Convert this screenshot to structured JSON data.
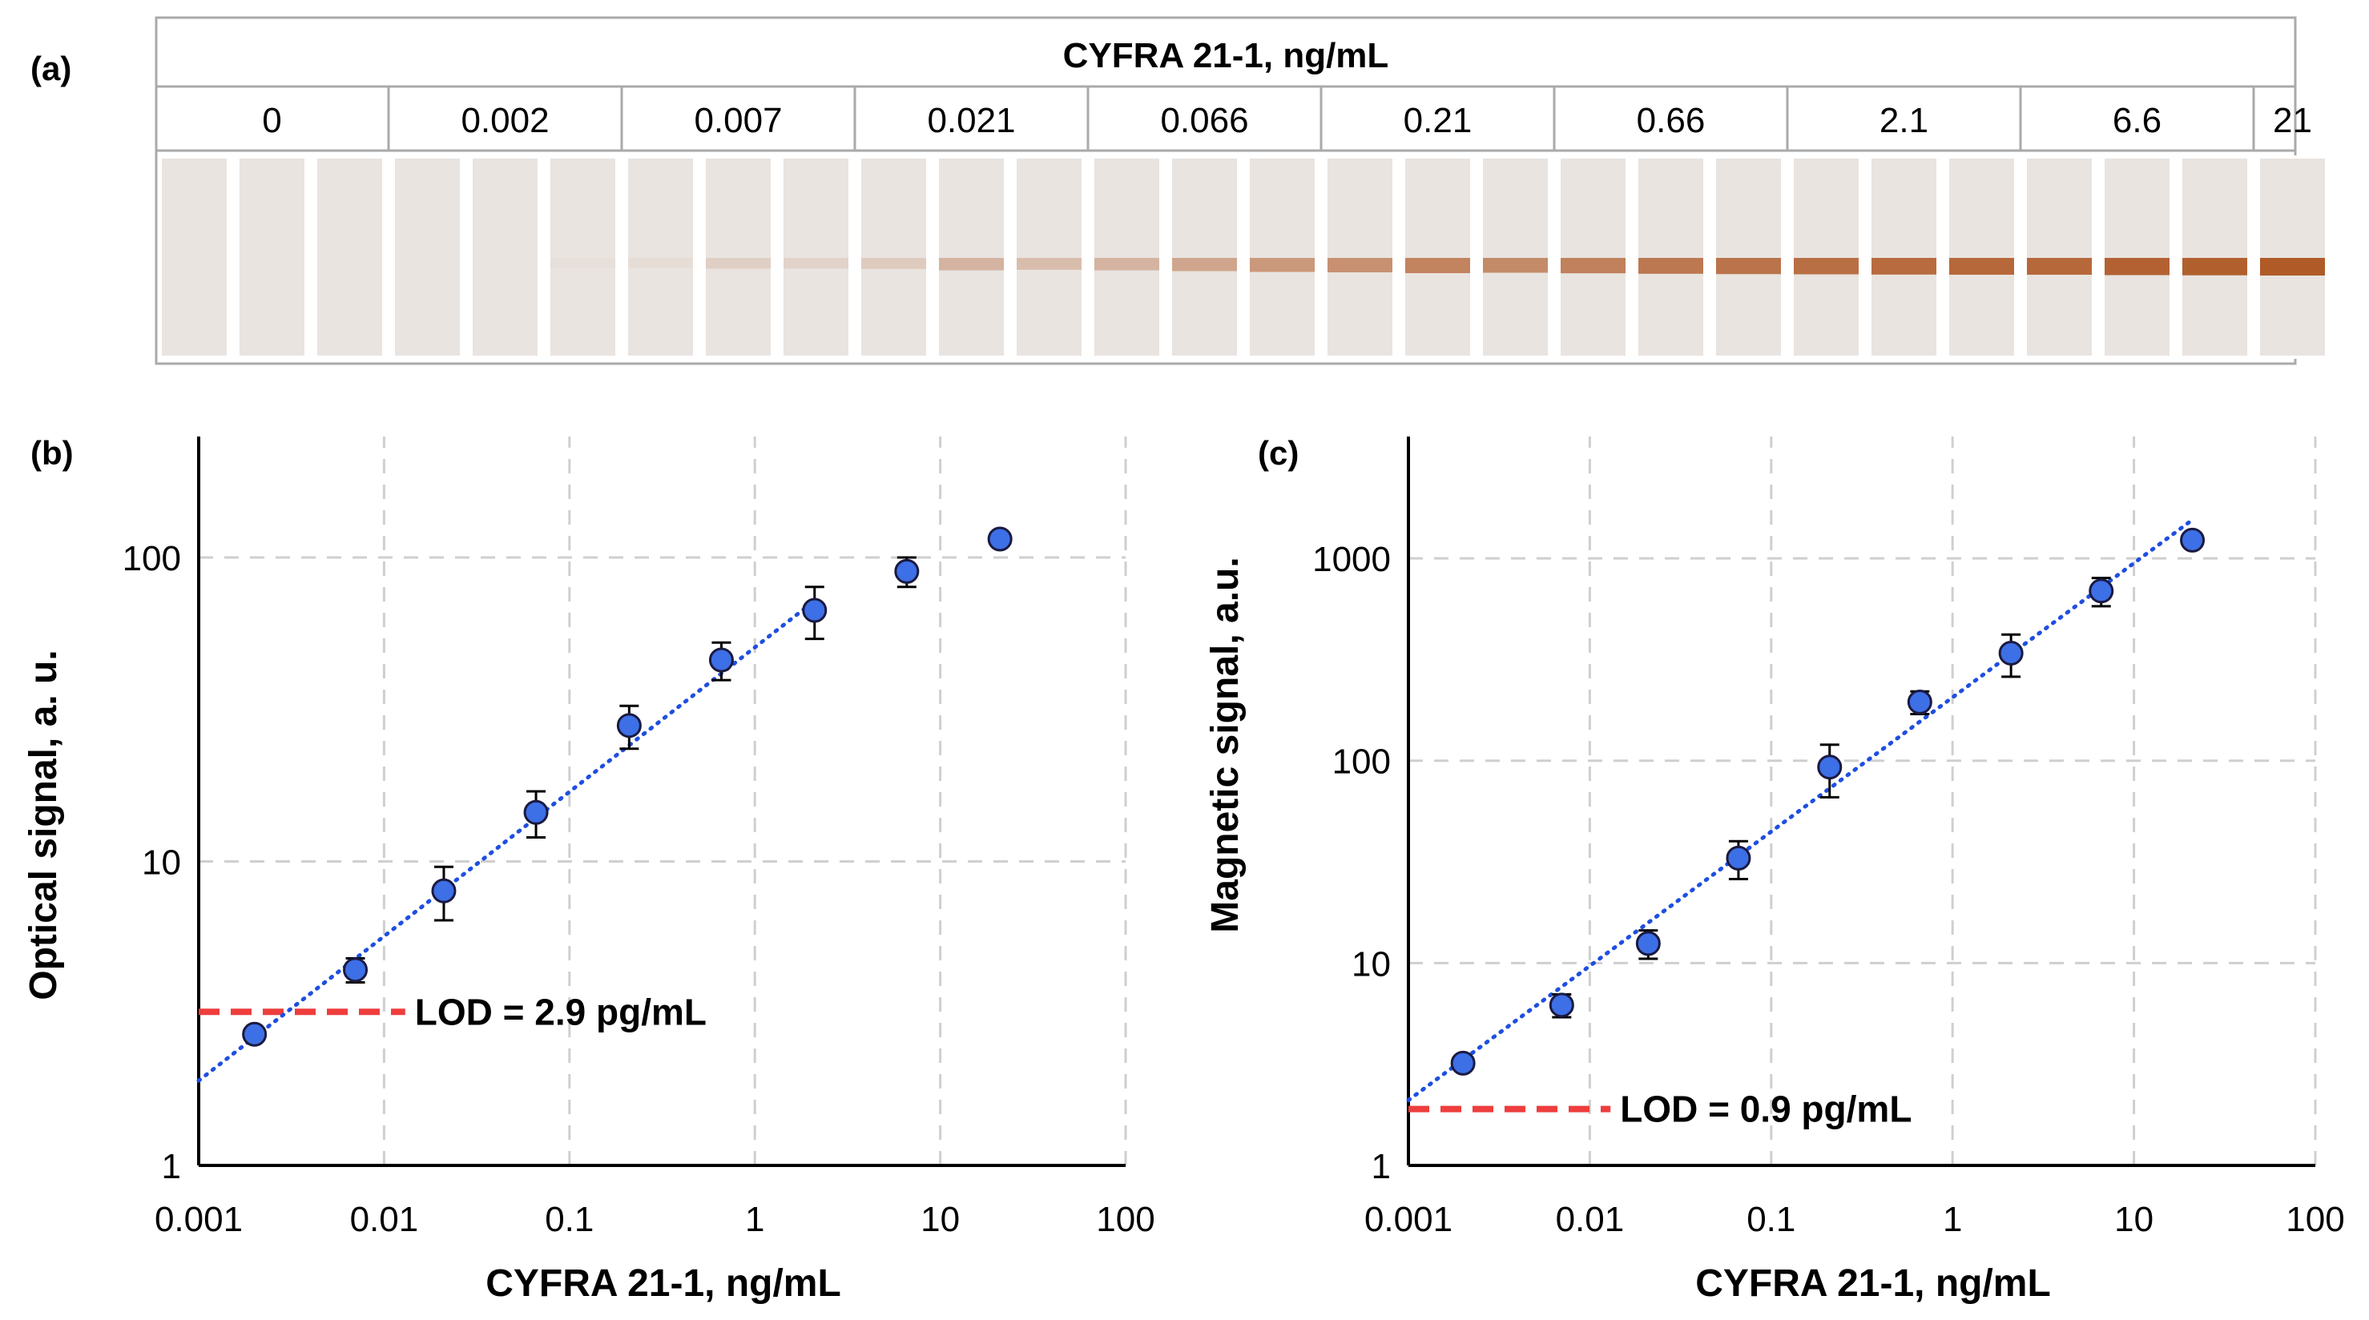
{
  "colors": {
    "marker_fill": "#3d6fe6",
    "marker_stroke": "#1a1a40",
    "fit_line": "#1f4fe0",
    "lod_line": "#ee3d3d",
    "grid": "#cfcfcf",
    "axis": "#000000",
    "panel_border": "#aaaaaa",
    "strip_background": "#e9e4e0",
    "band_color": "#b05a28"
  },
  "panel_a": {
    "label": "(a)",
    "header": "CYFRA 21-1, ng/mL",
    "concentrations": [
      "0",
      "0.002",
      "0.007",
      "0.021",
      "0.066",
      "0.21",
      "0.66",
      "2.1",
      "6.6",
      "21"
    ],
    "strips_per_group": [
      3,
      3,
      3,
      3,
      3,
      3,
      3,
      3,
      3,
      1
    ],
    "band_intensity": [
      [
        0,
        0,
        0
      ],
      [
        0,
        0,
        0.03
      ],
      [
        0.05,
        0.15,
        0.12
      ],
      [
        0.18,
        0.35,
        0.28
      ],
      [
        0.35,
        0.45,
        0.55
      ],
      [
        0.6,
        0.7,
        0.65
      ],
      [
        0.72,
        0.78,
        0.82
      ],
      [
        0.85,
        0.88,
        0.9
      ],
      [
        0.9,
        0.95,
        0.97
      ],
      [
        1.0
      ]
    ]
  },
  "chart_data": [
    {
      "panel": "(b)",
      "type": "scatter",
      "xscale": "log",
      "yscale": "log",
      "xlim": [
        0.001,
        100
      ],
      "ylim": [
        1,
        250
      ],
      "x_ticks": [
        0.001,
        0.01,
        0.1,
        1,
        10,
        100
      ],
      "x_tick_labels": [
        "0.001",
        "0.01",
        "0.1",
        "1",
        "10",
        "100"
      ],
      "y_ticks": [
        1,
        10,
        100
      ],
      "y_tick_labels": [
        "1",
        "10",
        "100"
      ],
      "xlabel": "CYFRA 21-1, ng/mL",
      "ylabel": "Optical signal, a. u.",
      "points": [
        {
          "x": 0.002,
          "y": 2.7,
          "err": 0
        },
        {
          "x": 0.007,
          "y": 4.4,
          "err": 0.4
        },
        {
          "x": 0.021,
          "y": 8.0,
          "err": 1.6
        },
        {
          "x": 0.066,
          "y": 14.5,
          "err": 2.5
        },
        {
          "x": 0.21,
          "y": 28,
          "err": 4.5
        },
        {
          "x": 0.66,
          "y": 46,
          "err": 6.5
        },
        {
          "x": 2.1,
          "y": 67,
          "err": 13
        },
        {
          "x": 6.6,
          "y": 90,
          "err": 10
        },
        {
          "x": 21,
          "y": 115,
          "err": 0
        }
      ],
      "fit": {
        "x_start": 0.001,
        "y_start": 1.9,
        "x_end": 2.1,
        "y_end": 72
      },
      "lod": {
        "y": 3.2,
        "x_start": 0.001,
        "x_end": 0.013,
        "label": "LOD = 2.9 pg/mL"
      }
    },
    {
      "panel": "(c)",
      "type": "scatter",
      "xscale": "log",
      "yscale": "log",
      "xlim": [
        0.001,
        100
      ],
      "ylim": [
        1,
        4000
      ],
      "x_ticks": [
        0.001,
        0.01,
        0.1,
        1,
        10,
        100
      ],
      "x_tick_labels": [
        "0.001",
        "0.01",
        "0.1",
        "1",
        "10",
        "100"
      ],
      "y_ticks": [
        1,
        10,
        100,
        1000
      ],
      "y_tick_labels": [
        "1",
        "10",
        "100",
        "1000"
      ],
      "xlabel": "CYFRA 21-1, ng/mL",
      "ylabel": "Magnetic signal, a.u.",
      "points": [
        {
          "x": 0.002,
          "y": 3.2,
          "err": 0
        },
        {
          "x": 0.007,
          "y": 6.2,
          "err": 0.8
        },
        {
          "x": 0.021,
          "y": 12.5,
          "err": 2
        },
        {
          "x": 0.066,
          "y": 33,
          "err": 7
        },
        {
          "x": 0.21,
          "y": 93,
          "err": 27
        },
        {
          "x": 0.66,
          "y": 195,
          "err": 25
        },
        {
          "x": 2.1,
          "y": 340,
          "err": 80
        },
        {
          "x": 6.6,
          "y": 690,
          "err": 110
        },
        {
          "x": 21,
          "y": 1230,
          "err": 0
        }
      ],
      "fit": {
        "x_start": 0.001,
        "y_start": 2.1,
        "x_end": 21,
        "y_end": 1550
      },
      "lod": {
        "y": 1.9,
        "x_start": 0.001,
        "x_end": 0.013,
        "label": "LOD = 0.9 pg/mL"
      }
    }
  ]
}
